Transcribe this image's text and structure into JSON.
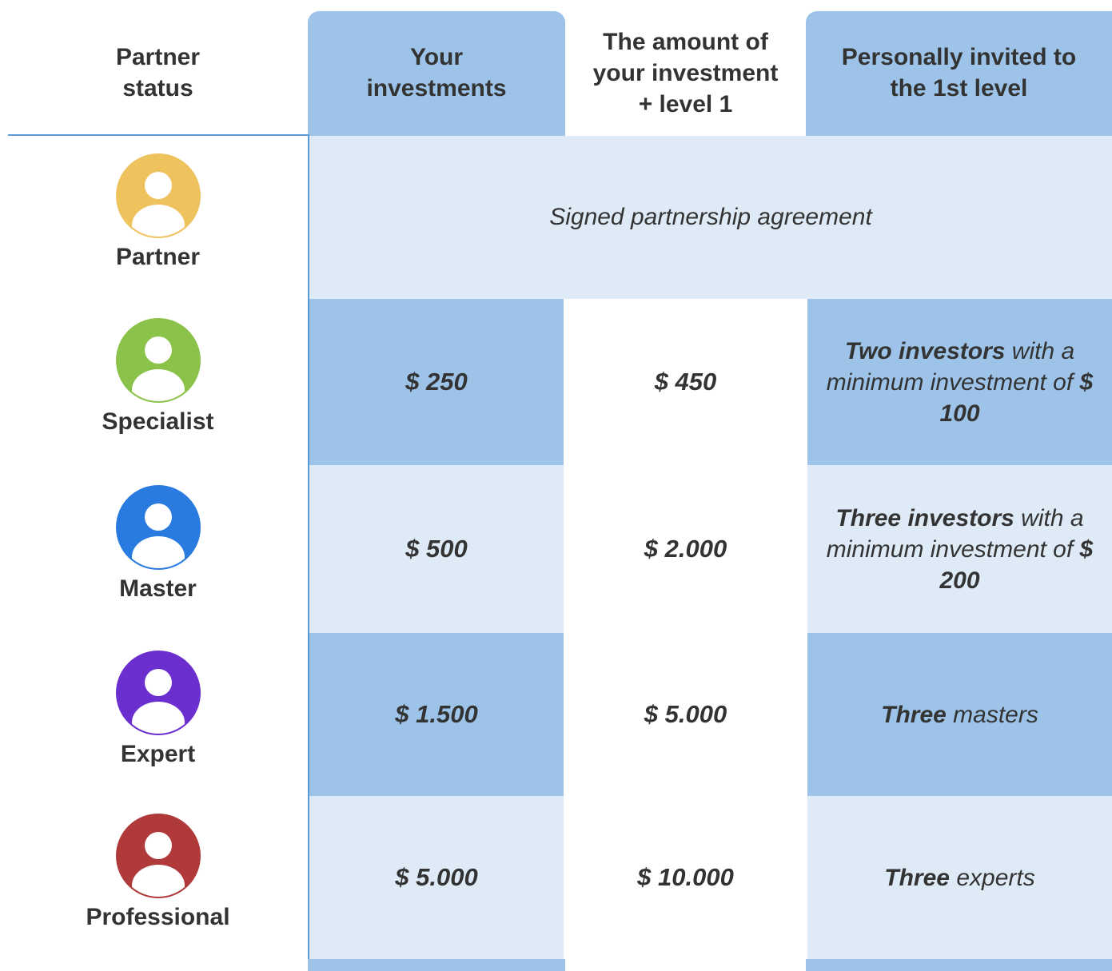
{
  "header": {
    "columns": [
      {
        "lines": [
          "Partner",
          "status"
        ]
      },
      {
        "lines": [
          "Your",
          "investments"
        ]
      },
      {
        "lines": [
          "The amount of",
          "your investment",
          "+ level 1"
        ]
      },
      {
        "lines": [
          "Personally invited to",
          "the 1st level"
        ]
      }
    ]
  },
  "table": {
    "rows": [
      {
        "status": "Partner",
        "color": "#eec35e",
        "note": "Signed partnership agreement"
      },
      {
        "status": "Specialist",
        "color": "#8bc34a",
        "investment": "$ 250",
        "amount": "$ 450",
        "invited": [
          {
            "text": "Two investors",
            "bold": true
          },
          {
            "text": " with a minimum investment of "
          },
          {
            "text": "$ 100",
            "bold": true
          }
        ]
      },
      {
        "status": "Master",
        "color": "#2a7be0",
        "investment": "$ 500",
        "amount": "$ 2.000",
        "invited": [
          {
            "text": "Three investors",
            "bold": true
          },
          {
            "text": " with a minimum investment of "
          },
          {
            "text": "$ 200",
            "bold": true
          }
        ]
      },
      {
        "status": "Expert",
        "color": "#6b2fcf",
        "investment": "$ 1.500",
        "amount": "$ 5.000",
        "invited": [
          {
            "text": "Three",
            "bold": true
          },
          {
            "text": " masters"
          }
        ]
      },
      {
        "status": "Professional",
        "color": "#b03a3a",
        "investment": "$ 5.000",
        "amount": "$ 10.000",
        "invited": [
          {
            "text": "Three",
            "bold": true
          },
          {
            "text": " experts"
          }
        ]
      }
    ]
  }
}
